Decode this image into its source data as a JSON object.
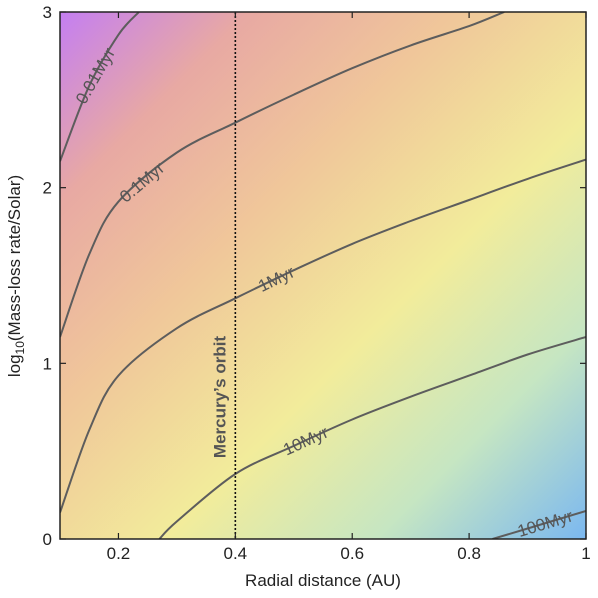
{
  "chart_data": {
    "type": "contour",
    "title": "",
    "xlabel": "Radial distance (AU)",
    "ylabel_parts": [
      "log",
      "10",
      "(Mass-loss rate/Solar)"
    ],
    "xlim": [
      0.1,
      1.0
    ],
    "ylim": [
      0,
      3
    ],
    "xticks": [
      0.2,
      0.4,
      0.6,
      0.8,
      1.0
    ],
    "xtick_labels": [
      "0.2",
      "0.4",
      "0.6",
      "0.8",
      "1"
    ],
    "yticks": [
      0,
      1,
      2,
      3
    ],
    "ytick_labels": [
      "0",
      "1",
      "2",
      "3"
    ],
    "contours": [
      {
        "label": "0.01Myr",
        "points": [
          [
            0.1,
            2.15
          ],
          [
            0.15,
            2.58
          ],
          [
            0.2,
            2.87
          ],
          [
            0.235,
            3.0
          ]
        ]
      },
      {
        "label": "0.1Myr",
        "points": [
          [
            0.1,
            1.15
          ],
          [
            0.15,
            1.62
          ],
          [
            0.2,
            1.92
          ],
          [
            0.3,
            2.2
          ],
          [
            0.4,
            2.37
          ],
          [
            0.5,
            2.53
          ],
          [
            0.6,
            2.68
          ],
          [
            0.7,
            2.81
          ],
          [
            0.8,
            2.92
          ],
          [
            0.86,
            3.0
          ]
        ]
      },
      {
        "label": "1Myr",
        "points": [
          [
            0.1,
            0.15
          ],
          [
            0.15,
            0.62
          ],
          [
            0.2,
            0.93
          ],
          [
            0.3,
            1.2
          ],
          [
            0.4,
            1.37
          ],
          [
            0.5,
            1.53
          ],
          [
            0.6,
            1.68
          ],
          [
            0.7,
            1.81
          ],
          [
            0.8,
            1.93
          ],
          [
            0.9,
            2.05
          ],
          [
            1.0,
            2.16
          ]
        ]
      },
      {
        "label": "10Myr",
        "points": [
          [
            0.27,
            0.0
          ],
          [
            0.3,
            0.1
          ],
          [
            0.4,
            0.37
          ],
          [
            0.5,
            0.53
          ],
          [
            0.6,
            0.68
          ],
          [
            0.7,
            0.81
          ],
          [
            0.8,
            0.93
          ],
          [
            0.9,
            1.05
          ],
          [
            1.0,
            1.15
          ]
        ]
      },
      {
        "label": "100Myr",
        "points": [
          [
            0.84,
            0.0
          ],
          [
            0.9,
            0.06
          ],
          [
            1.0,
            0.16
          ]
        ]
      }
    ],
    "vline": {
      "x": 0.4,
      "label": "Mercury’s orbit",
      "style": "dotted"
    },
    "colormap": [
      "#c47ef2",
      "#e8a9a3",
      "#f0c79a",
      "#f2ec9b",
      "#c6e6c2",
      "#7bb8f0"
    ]
  }
}
